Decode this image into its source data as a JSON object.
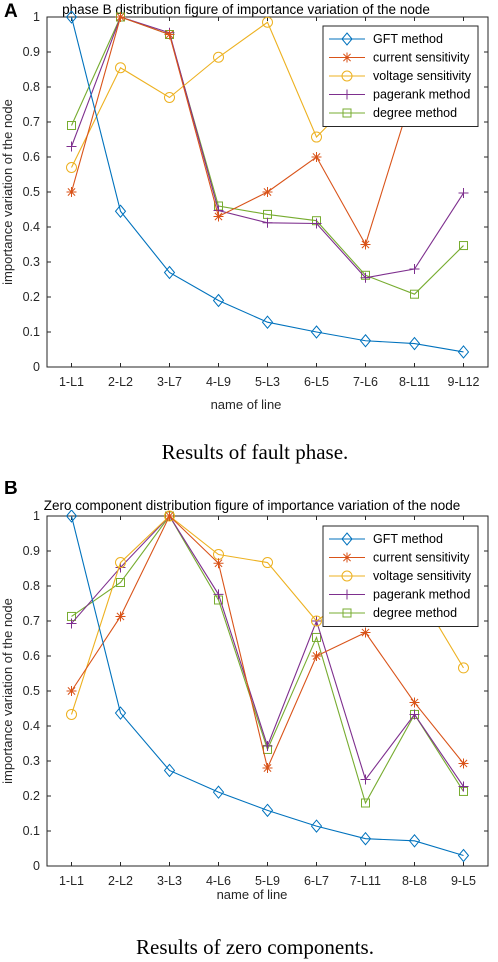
{
  "chart_data": [
    {
      "type": "line",
      "panel_label": "A",
      "title": "phase B distribution figure of importance variation of the node",
      "xlabel": "name of line",
      "ylabel": "importance variation of the node",
      "caption": "Results of fault phase.",
      "categories": [
        "1-L1",
        "2-L2",
        "3-L7",
        "4-L9",
        "5-L3",
        "6-L5",
        "7-L6",
        "8-L11",
        "9-L12"
      ],
      "ylim": [
        0,
        1
      ],
      "yticks": [
        "0",
        "0.1",
        "0.2",
        "0.3",
        "0.4",
        "0.5",
        "0.6",
        "0.7",
        "0.8",
        "0.9",
        "1"
      ],
      "legend_position": "top-right",
      "series": [
        {
          "name": "GFT method",
          "color": "#0072BD",
          "marker": "diamond",
          "values": [
            1.0,
            0.445,
            0.27,
            0.19,
            0.128,
            0.1,
            0.075,
            0.067,
            0.043
          ]
        },
        {
          "name": "current sensitivity",
          "color": "#D95319",
          "marker": "asterisk",
          "values": [
            0.5,
            1.0,
            0.95,
            0.43,
            0.5,
            0.6,
            0.35,
            0.8,
            null
          ]
        },
        {
          "name": "voltage sensitivity",
          "color": "#EDB120",
          "marker": "circle",
          "values": [
            0.57,
            0.855,
            0.77,
            0.885,
            0.985,
            0.657,
            0.8,
            null,
            null
          ]
        },
        {
          "name": "pagerank method",
          "color": "#7E2F8E",
          "marker": "plus",
          "values": [
            0.63,
            1.0,
            0.955,
            0.447,
            0.412,
            0.41,
            0.255,
            0.28,
            0.497
          ]
        },
        {
          "name": "degree method",
          "color": "#77AC30",
          "marker": "square",
          "values": [
            0.69,
            1.0,
            0.95,
            0.46,
            0.436,
            0.418,
            0.262,
            0.208,
            0.347
          ]
        }
      ]
    },
    {
      "type": "line",
      "panel_label": "B",
      "title": "Zero component distribution figure of importance variation of the node",
      "xlabel": "name of line",
      "ylabel": "importance variation of the node",
      "caption": "Results of zero components.",
      "categories": [
        "1-L1",
        "2-L2",
        "3-L3",
        "4-L6",
        "5-L9",
        "6-L7",
        "7-L11",
        "8-L8",
        "9-L5"
      ],
      "ylim": [
        0,
        1
      ],
      "yticks": [
        "0",
        "0.1",
        "0.2",
        "0.3",
        "0.4",
        "0.5",
        "0.6",
        "0.7",
        "0.8",
        "0.9",
        "1"
      ],
      "legend_position": "top-right",
      "series": [
        {
          "name": "GFT method",
          "color": "#0072BD",
          "marker": "diamond",
          "values": [
            1.0,
            0.437,
            0.273,
            0.211,
            0.159,
            0.114,
            0.078,
            0.072,
            0.03
          ]
        },
        {
          "name": "current sensitivity",
          "color": "#D95319",
          "marker": "asterisk",
          "values": [
            0.5,
            0.713,
            1.0,
            0.865,
            0.28,
            0.6,
            0.667,
            0.467,
            0.293
          ]
        },
        {
          "name": "voltage sensitivity",
          "color": "#EDB120",
          "marker": "circle",
          "values": [
            0.433,
            0.867,
            1.0,
            0.89,
            0.867,
            0.7,
            0.8,
            0.8,
            0.566
          ]
        },
        {
          "name": "pagerank method",
          "color": "#7E2F8E",
          "marker": "plus",
          "values": [
            0.693,
            0.853,
            1.0,
            0.776,
            0.343,
            0.7,
            0.247,
            0.433,
            0.227
          ]
        },
        {
          "name": "degree method",
          "color": "#77AC30",
          "marker": "square",
          "values": [
            0.713,
            0.81,
            1.0,
            0.76,
            0.333,
            0.653,
            0.18,
            0.433,
            0.213
          ]
        }
      ]
    }
  ]
}
